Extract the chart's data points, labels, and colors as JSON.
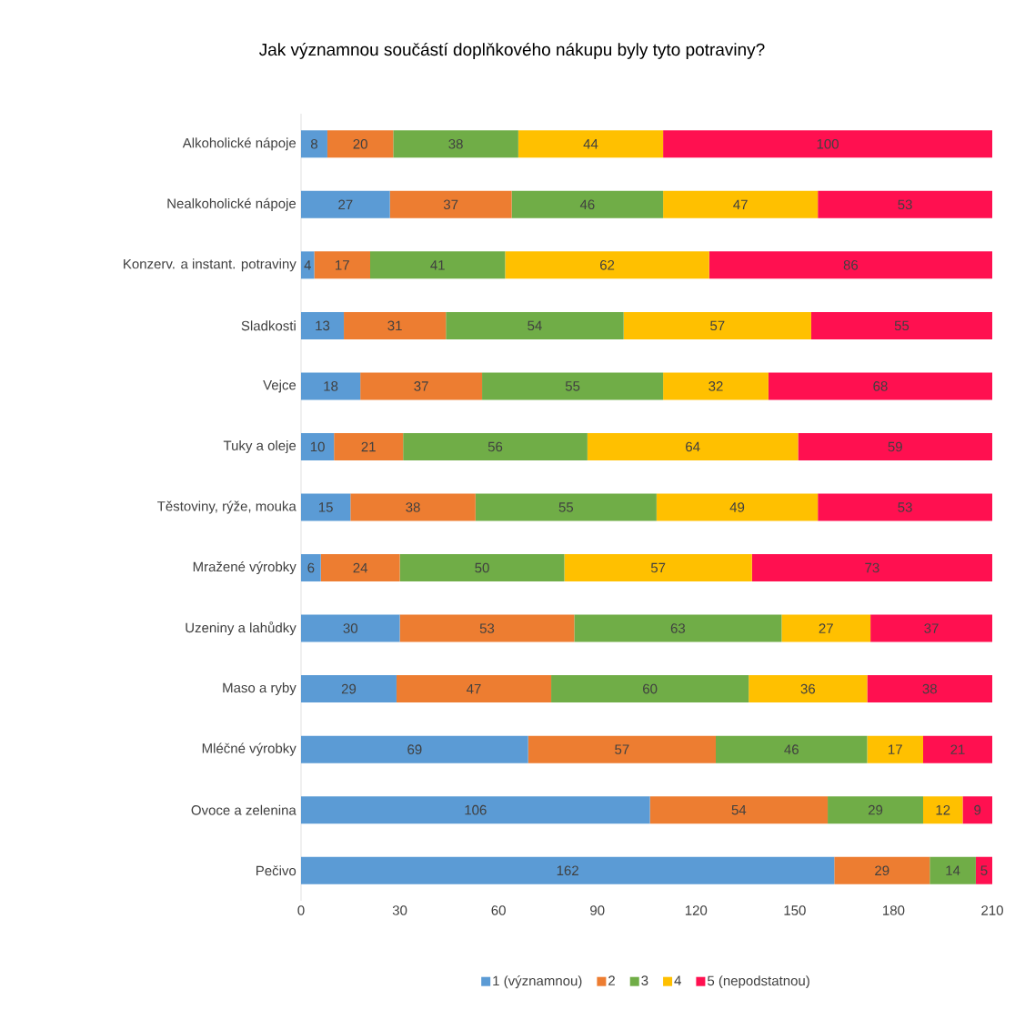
{
  "chart_data": {
    "type": "bar",
    "orientation": "horizontal",
    "stacked": true,
    "title": "Jak významnou součástí doplňkového nákupu byly tyto potraviny?",
    "categories": [
      "Alkoholické nápoje",
      "Nealkoholické nápoje",
      "Konzerv. a instant. potraviny",
      "Sladkosti",
      "Vejce",
      "Tuky a oleje",
      "Těstoviny, rýže, mouka",
      "Mražené výrobky",
      "Uzeniny a lahůdky",
      "Maso a ryby",
      "Mléčné výrobky",
      "Ovoce a zelenina",
      "Pečivo"
    ],
    "series": [
      {
        "name": "1 (významnou)",
        "color": "#5b9bd5",
        "values": [
          8,
          27,
          4,
          13,
          18,
          10,
          15,
          6,
          30,
          29,
          69,
          106,
          162
        ]
      },
      {
        "name": "2",
        "color": "#ed7d31",
        "values": [
          20,
          37,
          17,
          31,
          37,
          21,
          38,
          24,
          53,
          47,
          57,
          54,
          29
        ]
      },
      {
        "name": "3",
        "color": "#70ad47",
        "values": [
          38,
          46,
          41,
          54,
          55,
          56,
          55,
          50,
          63,
          60,
          46,
          29,
          14
        ]
      },
      {
        "name": "4",
        "color": "#ffc000",
        "values": [
          44,
          47,
          62,
          57,
          32,
          64,
          49,
          57,
          27,
          36,
          17,
          12,
          null
        ]
      },
      {
        "name": "5 (nepodstatnou)",
        "color": "#ff1050",
        "values": [
          100,
          53,
          86,
          55,
          68,
          59,
          53,
          73,
          37,
          38,
          21,
          9,
          5
        ]
      }
    ],
    "xlim": [
      0,
      210
    ],
    "xticks": [
      0,
      30,
      60,
      90,
      120,
      150,
      180,
      210
    ],
    "data_labels": true,
    "grid": false,
    "legend": "bottom"
  }
}
